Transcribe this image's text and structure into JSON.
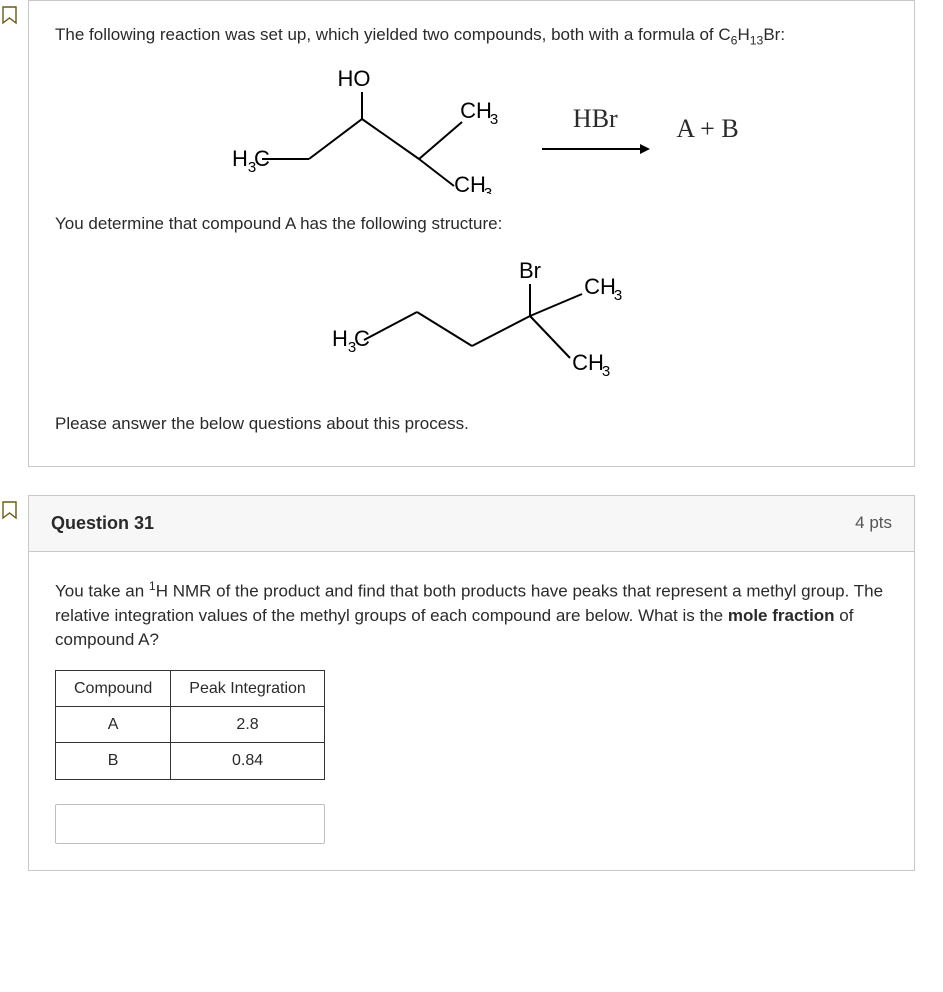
{
  "context_card": {
    "intro_html": "The following reaction was set up, which yielded two compounds, both with a formula of C<sub>6</sub>H<sub>13</sub>Br:",
    "reaction": {
      "reagent_top": "HBr",
      "product_label": "A + B",
      "labels": {
        "HO": "HO",
        "CH3": "CH3",
        "H3C": "H3C"
      }
    },
    "mid_text": "You determine that compound A has the following structure:",
    "productA": {
      "labels": {
        "Br": "Br",
        "CH3": "CH3",
        "H3C": "H3C"
      }
    },
    "closing_text": "Please answer the below questions about this process."
  },
  "question": {
    "number_label": "Question 31",
    "points_label": "4 pts",
    "prompt_html": "You take an <sup>1</sup>H NMR of the product and find that both products have peaks that represent a methyl group. The relative integration values of the methyl groups of each compound are below. What is the <b>mole fraction</b> of compound A?",
    "table": {
      "headers": [
        "Compound",
        "Peak Integration"
      ],
      "rows": [
        [
          "A",
          "2.8"
        ],
        [
          "B",
          "0.84"
        ]
      ]
    },
    "answer_placeholder": ""
  },
  "styling": {
    "border_color": "#c8c8c8",
    "flag_stroke": "#6b5a14",
    "font_family": "Helvetica Neue, Arial, sans-serif",
    "chem_font": "Arial, sans-serif",
    "bg": "#ffffff",
    "header_bg": "#f7f7f7"
  }
}
